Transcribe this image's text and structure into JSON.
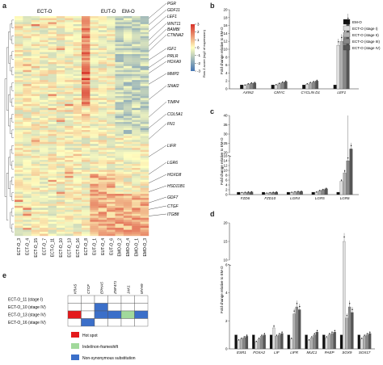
{
  "figure": {
    "panel_labels": [
      "a",
      "b",
      "c",
      "d",
      "e"
    ]
  },
  "heatmap": {
    "group_labels": [
      "ECT-O",
      "EUT-O",
      "EM-O"
    ],
    "column_labels": [
      "ECT-O_3",
      "ECT-O_4",
      "ECT-O_15",
      "ECT-O_7",
      "ECT-O_11",
      "ECT-O_10",
      "ECT-O_13",
      "ECT-O_16",
      "ECT-O_8",
      "EUT-O_1",
      "EUT-O_4",
      "EUT-O_6",
      "EMO-O_2",
      "EMO-O_4",
      "EMO-O_1",
      "EMO-O_3"
    ],
    "gene_labels": [
      "PGR",
      "GDF11",
      "LEF1",
      "WNT11",
      "BAMBI",
      "CTNNA2",
      "IGF1",
      "PRLR",
      "HOXA9",
      "MMP2",
      "SNAI2",
      "TIMP4",
      "COL5A1",
      "FN1",
      "LIFR",
      "LGR6",
      "HOXD8",
      "HSD11B1",
      "GDF7",
      "CTGF",
      "ITGB8"
    ],
    "scale_title": "Row Z-score (log2 of expression)",
    "scale_ticks": [
      "3",
      "2",
      "1",
      "0",
      "-1",
      "-2",
      "-3"
    ],
    "colors": {
      "high": "#d73027",
      "mid": "#ffffbf",
      "low": "#4575b4"
    }
  },
  "panel_b": {
    "ylabel": "Fold change relative to EM-O",
    "yticks": [
      "0",
      "2",
      "4",
      "6",
      "8",
      "10",
      "12",
      "14",
      "16",
      "18",
      "20"
    ],
    "genes": [
      "AXIN2",
      "CMYC",
      "CYCLIN D1",
      "LEF1"
    ],
    "legend": [
      "EM-O",
      "ECT-O (stage I)",
      "ECT-O (stage II)",
      "ECT-O (stage III)",
      "ECT-O (stage IV)"
    ],
    "legend_colors": [
      "#111111",
      "#dddddd",
      "#b0b0b0",
      "#888888",
      "#555555"
    ]
  },
  "panel_c": {
    "ylabel": "Fold change relative to EM-O",
    "yticks_top": [
      "20",
      "25",
      "30",
      "35",
      "40"
    ],
    "yticks_bottom": [
      "0",
      "2",
      "4",
      "6",
      "8",
      "10",
      "12",
      "14",
      "16"
    ],
    "genes": [
      "FZD6",
      "FZD10",
      "LGR4",
      "LGR5",
      "LGR6"
    ]
  },
  "panel_d": {
    "ylabel": "Fold change relative to EM-O",
    "yticks_top": [
      "10",
      "15",
      "20"
    ],
    "yticks_bottom": [
      "0",
      "2",
      "4",
      "6"
    ],
    "genes": [
      "ESR1",
      "FOXA2",
      "LIF",
      "LIFR",
      "MUC1",
      "PAEP",
      "SOX9",
      "SOX17"
    ]
  },
  "chart_data": [
    {
      "type": "bar",
      "title": "",
      "ylabel": "Fold change relative to EM-O",
      "ylim": [
        0,
        20
      ],
      "categories": [
        "AXIN2",
        "CMYC",
        "CYCLIN D1",
        "LEF1"
      ],
      "series": [
        {
          "name": "EM-O",
          "values": [
            1.0,
            1.0,
            1.0,
            1.0
          ]
        },
        {
          "name": "ECT-O (stage I)",
          "values": [
            0.9,
            1.0,
            1.2,
            11.0
          ]
        },
        {
          "name": "ECT-O (stage II)",
          "values": [
            1.2,
            1.3,
            1.5,
            12.0
          ]
        },
        {
          "name": "ECT-O (stage III)",
          "values": [
            1.4,
            1.6,
            1.7,
            13.5
          ]
        },
        {
          "name": "ECT-O (stage IV)",
          "values": [
            1.5,
            1.8,
            2.0,
            16.5
          ]
        }
      ]
    },
    {
      "type": "bar",
      "title": "",
      "ylabel": "Fold change relative to EM-O",
      "ylim": [
        0,
        40
      ],
      "categories": [
        "FZD6",
        "FZD10",
        "LGR4",
        "LGR5",
        "LGR6"
      ],
      "series": [
        {
          "name": "EM-O",
          "values": [
            1.0,
            1.0,
            1.0,
            1.0,
            1.0
          ]
        },
        {
          "name": "ECT-O (stage I)",
          "values": [
            0.8,
            0.6,
            0.9,
            1.0,
            5.5
          ]
        },
        {
          "name": "ECT-O (stage II)",
          "values": [
            0.9,
            0.8,
            1.1,
            1.6,
            9.0
          ]
        },
        {
          "name": "ECT-O (stage III)",
          "values": [
            1.0,
            0.9,
            1.2,
            2.0,
            14.0
          ]
        },
        {
          "name": "ECT-O (stage IV)",
          "values": [
            1.1,
            1.0,
            1.3,
            2.4,
            22.0
          ]
        }
      ]
    },
    {
      "type": "bar",
      "title": "",
      "ylabel": "Fold change relative to EM-O",
      "ylim": [
        0,
        20
      ],
      "categories": [
        "ESR1",
        "FOXA2",
        "LIF",
        "LIFR",
        "MUC1",
        "PAEP",
        "SOX9",
        "SOX17"
      ],
      "series": [
        {
          "name": "EM-O",
          "values": [
            1.0,
            1.0,
            1.0,
            1.0,
            1.0,
            1.0,
            1.0,
            1.0
          ]
        },
        {
          "name": "ECT-O (stage I)",
          "values": [
            0.6,
            0.5,
            1.5,
            0.7,
            0.6,
            0.8,
            15.0,
            0.7
          ]
        },
        {
          "name": "ECT-O (stage II)",
          "values": [
            0.7,
            0.7,
            0.9,
            2.5,
            0.8,
            1.0,
            2.2,
            0.9
          ]
        },
        {
          "name": "ECT-O (stage III)",
          "values": [
            0.8,
            0.9,
            1.0,
            3.0,
            1.0,
            1.1,
            3.0,
            1.0
          ]
        },
        {
          "name": "ECT-O (stage IV)",
          "values": [
            0.9,
            1.0,
            1.1,
            2.8,
            1.2,
            1.2,
            2.6,
            1.1
          ]
        }
      ]
    }
  ],
  "panel_e": {
    "rows": [
      "ECT-O_11 (stage I)",
      "ECT-O_10 (stage IV)",
      "ECT-O_13 (stage IV)",
      "ECT-O_16 (stage IV)"
    ],
    "columns": [
      "KRAS",
      "CTCF",
      "EPHA5",
      "ZNF471",
      "JAK1",
      "MYH9"
    ],
    "cells": [
      [
        "",
        "",
        "",
        "",
        "",
        ""
      ],
      [
        "",
        "",
        "non",
        "",
        "",
        ""
      ],
      [
        "hot",
        "",
        "non",
        "non",
        "indel",
        "non"
      ],
      [
        "",
        "non",
        "",
        "",
        "",
        ""
      ]
    ],
    "legend": [
      {
        "key": "hot",
        "label": "Hot spot",
        "color": "#e41a1c"
      },
      {
        "key": "indel",
        "label": "Indel/non-frameshift",
        "color": "#a1d99b"
      },
      {
        "key": "non",
        "label": "Non-synonymous substitution",
        "color": "#3b6fc9"
      }
    ]
  }
}
